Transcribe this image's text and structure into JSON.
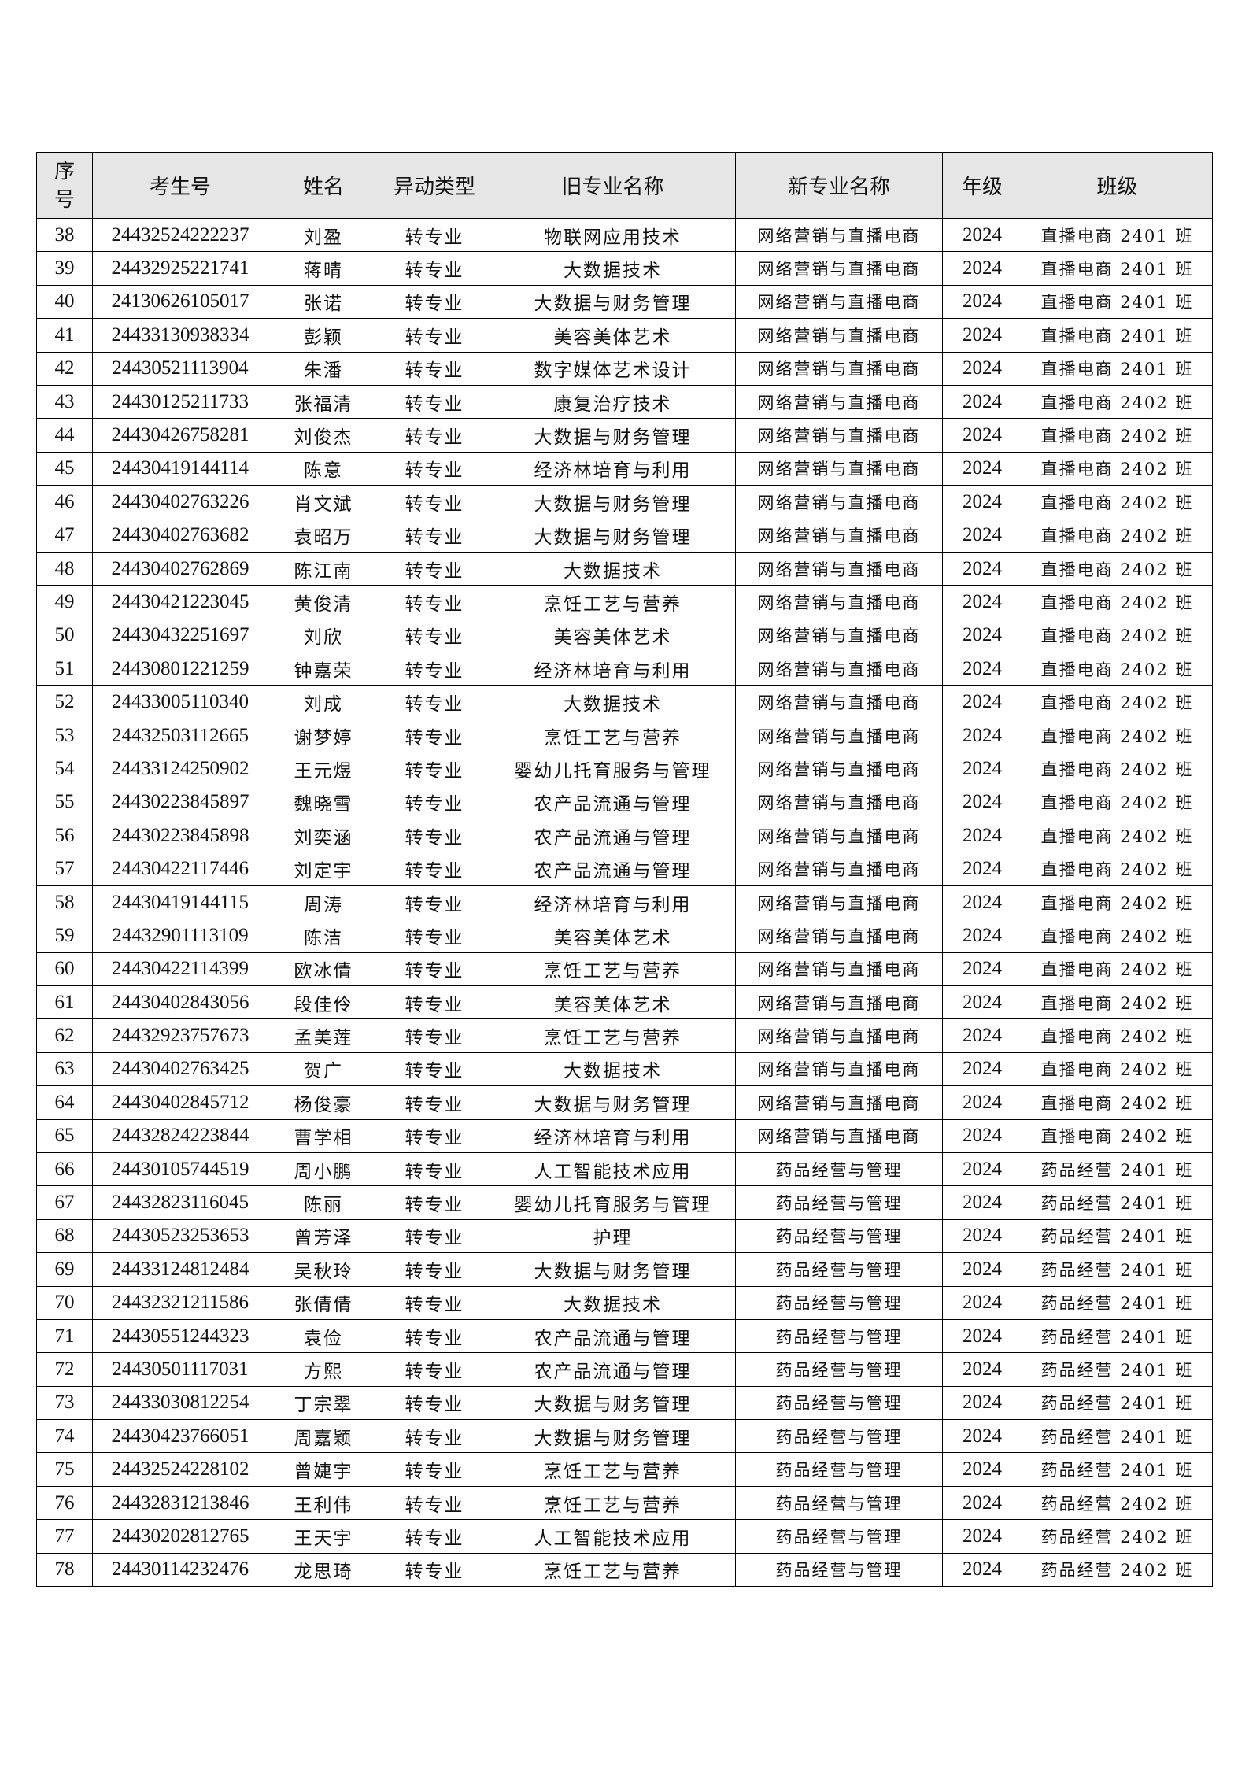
{
  "headers": [
    "序号",
    "考生号",
    "姓名",
    "异动类型",
    "旧专业名称",
    "新专业名称",
    "年级",
    "班级"
  ],
  "rows": [
    [
      "38",
      "24432524222237",
      "刘盈",
      "转专业",
      "物联网应用技术",
      "网络营销与直播电商",
      "2024",
      "直播电商 2401 班"
    ],
    [
      "39",
      "24432925221741",
      "蒋晴",
      "转专业",
      "大数据技术",
      "网络营销与直播电商",
      "2024",
      "直播电商 2401 班"
    ],
    [
      "40",
      "24130626105017",
      "张诺",
      "转专业",
      "大数据与财务管理",
      "网络营销与直播电商",
      "2024",
      "直播电商 2401 班"
    ],
    [
      "41",
      "24433130938334",
      "彭颖",
      "转专业",
      "美容美体艺术",
      "网络营销与直播电商",
      "2024",
      "直播电商 2401 班"
    ],
    [
      "42",
      "24430521113904",
      "朱潘",
      "转专业",
      "数字媒体艺术设计",
      "网络营销与直播电商",
      "2024",
      "直播电商 2401 班"
    ],
    [
      "43",
      "24430125211733",
      "张福清",
      "转专业",
      "康复治疗技术",
      "网络营销与直播电商",
      "2024",
      "直播电商 2402 班"
    ],
    [
      "44",
      "24430426758281",
      "刘俊杰",
      "转专业",
      "大数据与财务管理",
      "网络营销与直播电商",
      "2024",
      "直播电商 2402 班"
    ],
    [
      "45",
      "24430419144114",
      "陈意",
      "转专业",
      "经济林培育与利用",
      "网络营销与直播电商",
      "2024",
      "直播电商 2402 班"
    ],
    [
      "46",
      "24430402763226",
      "肖文斌",
      "转专业",
      "大数据与财务管理",
      "网络营销与直播电商",
      "2024",
      "直播电商 2402 班"
    ],
    [
      "47",
      "24430402763682",
      "袁昭万",
      "转专业",
      "大数据与财务管理",
      "网络营销与直播电商",
      "2024",
      "直播电商 2402 班"
    ],
    [
      "48",
      "24430402762869",
      "陈江南",
      "转专业",
      "大数据技术",
      "网络营销与直播电商",
      "2024",
      "直播电商 2402 班"
    ],
    [
      "49",
      "24430421223045",
      "黄俊清",
      "转专业",
      "烹饪工艺与营养",
      "网络营销与直播电商",
      "2024",
      "直播电商 2402 班"
    ],
    [
      "50",
      "24430432251697",
      "刘欣",
      "转专业",
      "美容美体艺术",
      "网络营销与直播电商",
      "2024",
      "直播电商 2402 班"
    ],
    [
      "51",
      "24430801221259",
      "钟嘉荣",
      "转专业",
      "经济林培育与利用",
      "网络营销与直播电商",
      "2024",
      "直播电商 2402 班"
    ],
    [
      "52",
      "24433005110340",
      "刘成",
      "转专业",
      "大数据技术",
      "网络营销与直播电商",
      "2024",
      "直播电商 2402 班"
    ],
    [
      "53",
      "24432503112665",
      "谢梦婷",
      "转专业",
      "烹饪工艺与营养",
      "网络营销与直播电商",
      "2024",
      "直播电商 2402 班"
    ],
    [
      "54",
      "24433124250902",
      "王元煜",
      "转专业",
      "婴幼儿托育服务与管理",
      "网络营销与直播电商",
      "2024",
      "直播电商 2402 班"
    ],
    [
      "55",
      "24430223845897",
      "魏晓雪",
      "转专业",
      "农产品流通与管理",
      "网络营销与直播电商",
      "2024",
      "直播电商 2402 班"
    ],
    [
      "56",
      "24430223845898",
      "刘奕涵",
      "转专业",
      "农产品流通与管理",
      "网络营销与直播电商",
      "2024",
      "直播电商 2402 班"
    ],
    [
      "57",
      "24430422117446",
      "刘定宇",
      "转专业",
      "农产品流通与管理",
      "网络营销与直播电商",
      "2024",
      "直播电商 2402 班"
    ],
    [
      "58",
      "24430419144115",
      "周涛",
      "转专业",
      "经济林培育与利用",
      "网络营销与直播电商",
      "2024",
      "直播电商 2402 班"
    ],
    [
      "59",
      "24432901113109",
      "陈洁",
      "转专业",
      "美容美体艺术",
      "网络营销与直播电商",
      "2024",
      "直播电商 2402 班"
    ],
    [
      "60",
      "24430422114399",
      "欧冰倩",
      "转专业",
      "烹饪工艺与营养",
      "网络营销与直播电商",
      "2024",
      "直播电商 2402 班"
    ],
    [
      "61",
      "24430402843056",
      "段佳伶",
      "转专业",
      "美容美体艺术",
      "网络营销与直播电商",
      "2024",
      "直播电商 2402 班"
    ],
    [
      "62",
      "24432923757673",
      "孟美莲",
      "转专业",
      "烹饪工艺与营养",
      "网络营销与直播电商",
      "2024",
      "直播电商 2402 班"
    ],
    [
      "63",
      "24430402763425",
      "贺广",
      "转专业",
      "大数据技术",
      "网络营销与直播电商",
      "2024",
      "直播电商 2402 班"
    ],
    [
      "64",
      "24430402845712",
      "杨俊豪",
      "转专业",
      "大数据与财务管理",
      "网络营销与直播电商",
      "2024",
      "直播电商 2402 班"
    ],
    [
      "65",
      "24432824223844",
      "曹学相",
      "转专业",
      "经济林培育与利用",
      "网络营销与直播电商",
      "2024",
      "直播电商 2402 班"
    ],
    [
      "66",
      "24430105744519",
      "周小鹏",
      "转专业",
      "人工智能技术应用",
      "药品经营与管理",
      "2024",
      "药品经营 2401 班"
    ],
    [
      "67",
      "24432823116045",
      "陈丽",
      "转专业",
      "婴幼儿托育服务与管理",
      "药品经营与管理",
      "2024",
      "药品经营 2401 班"
    ],
    [
      "68",
      "24430523253653",
      "曾芳泽",
      "转专业",
      "护理",
      "药品经营与管理",
      "2024",
      "药品经营 2401 班"
    ],
    [
      "69",
      "24433124812484",
      "吴秋玲",
      "转专业",
      "大数据与财务管理",
      "药品经营与管理",
      "2024",
      "药品经营 2401 班"
    ],
    [
      "70",
      "24432321211586",
      "张倩倩",
      "转专业",
      "大数据技术",
      "药品经营与管理",
      "2024",
      "药品经营 2401 班"
    ],
    [
      "71",
      "24430551244323",
      "袁俭",
      "转专业",
      "农产品流通与管理",
      "药品经营与管理",
      "2024",
      "药品经营 2401 班"
    ],
    [
      "72",
      "24430501117031",
      "方熙",
      "转专业",
      "农产品流通与管理",
      "药品经营与管理",
      "2024",
      "药品经营 2401 班"
    ],
    [
      "73",
      "24433030812254",
      "丁宗翠",
      "转专业",
      "大数据与财务管理",
      "药品经营与管理",
      "2024",
      "药品经营 2401 班"
    ],
    [
      "74",
      "24430423766051",
      "周嘉颖",
      "转专业",
      "大数据与财务管理",
      "药品经营与管理",
      "2024",
      "药品经营 2401 班"
    ],
    [
      "75",
      "24432524228102",
      "曾婕宇",
      "转专业",
      "烹饪工艺与营养",
      "药品经营与管理",
      "2024",
      "药品经营 2401 班"
    ],
    [
      "76",
      "24432831213846",
      "王利伟",
      "转专业",
      "烹饪工艺与营养",
      "药品经营与管理",
      "2024",
      "药品经营 2402 班"
    ],
    [
      "77",
      "24430202812765",
      "王天宇",
      "转专业",
      "人工智能技术应用",
      "药品经营与管理",
      "2024",
      "药品经营 2402 班"
    ],
    [
      "78",
      "24430114232476",
      "龙思琦",
      "转专业",
      "烹饪工艺与营养",
      "药品经营与管理",
      "2024",
      "药品经营 2402 班"
    ]
  ]
}
